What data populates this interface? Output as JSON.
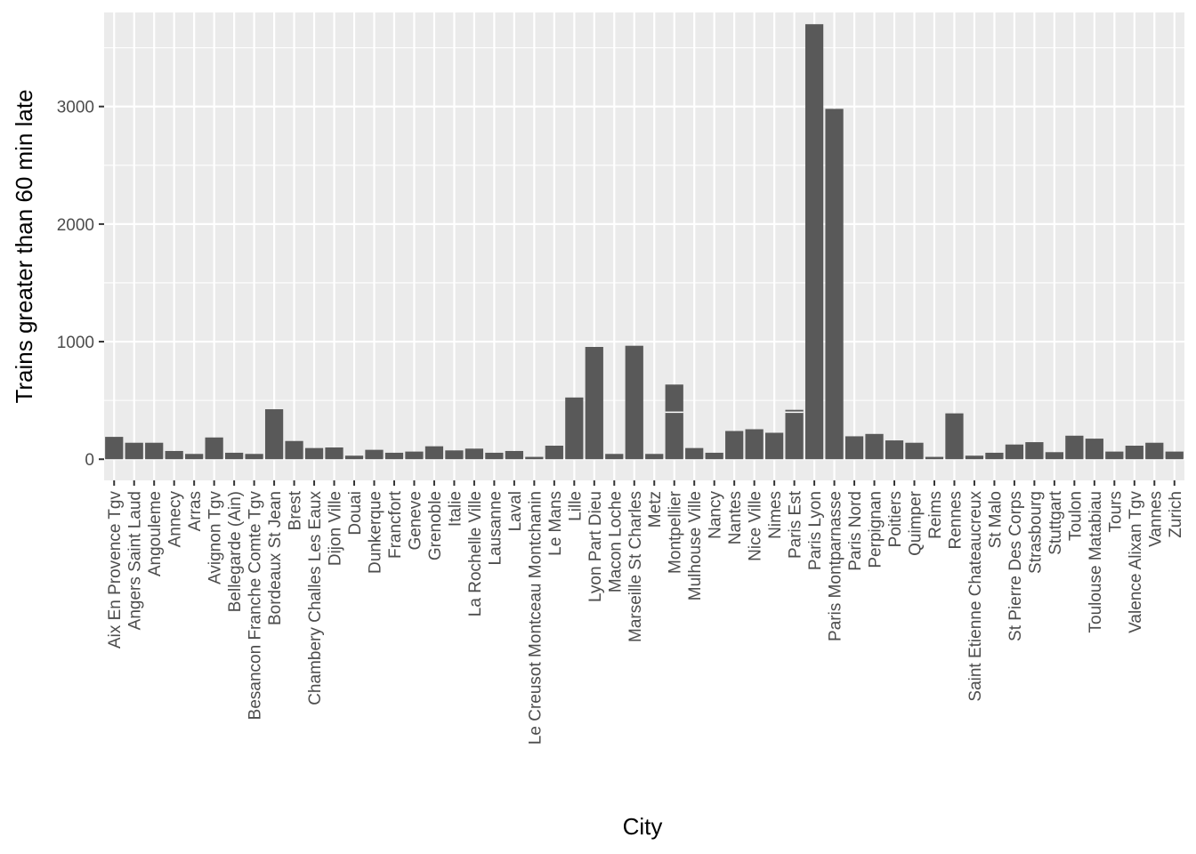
{
  "chart_data": {
    "type": "bar",
    "title": "",
    "xlabel": "City",
    "ylabel": "Trains greater than 60 min late",
    "ylim": [
      -180,
      3800
    ],
    "yticks": [
      0,
      1000,
      2000,
      3000
    ],
    "ytick_labels": [
      "0",
      "1000",
      "2000",
      "3000"
    ],
    "grid": true,
    "legend": "none",
    "colors": {
      "bar": "#595959",
      "panel": "#ebebeb",
      "grid": "#ffffff",
      "segment_line": "#ffffff"
    },
    "categories": [
      "Aix En Provence Tgv",
      "Angers Saint Laud",
      "Angouleme",
      "Annecy",
      "Arras",
      "Avignon Tgv",
      "Bellegarde (Ain)",
      "Besancon Franche Comte Tgv",
      "Bordeaux St Jean",
      "Brest",
      "Chambery Challes Les Eaux",
      "Dijon Ville",
      "Douai",
      "Dunkerque",
      "Francfort",
      "Geneve",
      "Grenoble",
      "Italie",
      "La Rochelle Ville",
      "Lausanne",
      "Laval",
      "Le Creusot Montceau Montchanin",
      "Le Mans",
      "Lille",
      "Lyon Part Dieu",
      "Macon Loche",
      "Marseille St Charles",
      "Metz",
      "Montpellier",
      "Mulhouse Ville",
      "Nancy",
      "Nantes",
      "Nice Ville",
      "Nimes",
      "Paris Est",
      "Paris Lyon",
      "Paris Montparnasse",
      "Paris Nord",
      "Perpignan",
      "Poitiers",
      "Quimper",
      "Reims",
      "Rennes",
      "Saint Etienne Chateaucreux",
      "St Malo",
      "St Pierre Des Corps",
      "Strasbourg",
      "Stuttgart",
      "Toulon",
      "Toulouse Matabiau",
      "Tours",
      "Valence Alixan Tgv",
      "Vannes",
      "Zurich"
    ],
    "values": [
      190,
      140,
      140,
      70,
      45,
      185,
      55,
      45,
      425,
      155,
      95,
      100,
      30,
      80,
      55,
      65,
      110,
      75,
      90,
      55,
      70,
      20,
      115,
      525,
      955,
      45,
      965,
      45,
      635,
      95,
      55,
      240,
      255,
      225,
      420,
      3700,
      2980,
      195,
      215,
      160,
      140,
      20,
      390,
      30,
      55,
      125,
      145,
      60,
      200,
      175,
      65,
      115,
      140,
      65
    ],
    "segment_splits": [
      null,
      null,
      null,
      null,
      null,
      null,
      null,
      null,
      null,
      null,
      null,
      null,
      null,
      null,
      null,
      null,
      null,
      null,
      null,
      null,
      null,
      null,
      null,
      null,
      null,
      null,
      null,
      null,
      400,
      null,
      null,
      null,
      null,
      null,
      400,
      null,
      null,
      null,
      null,
      null,
      null,
      null,
      null,
      null,
      null,
      null,
      null,
      null,
      null,
      null,
      null,
      null,
      null,
      null
    ]
  }
}
